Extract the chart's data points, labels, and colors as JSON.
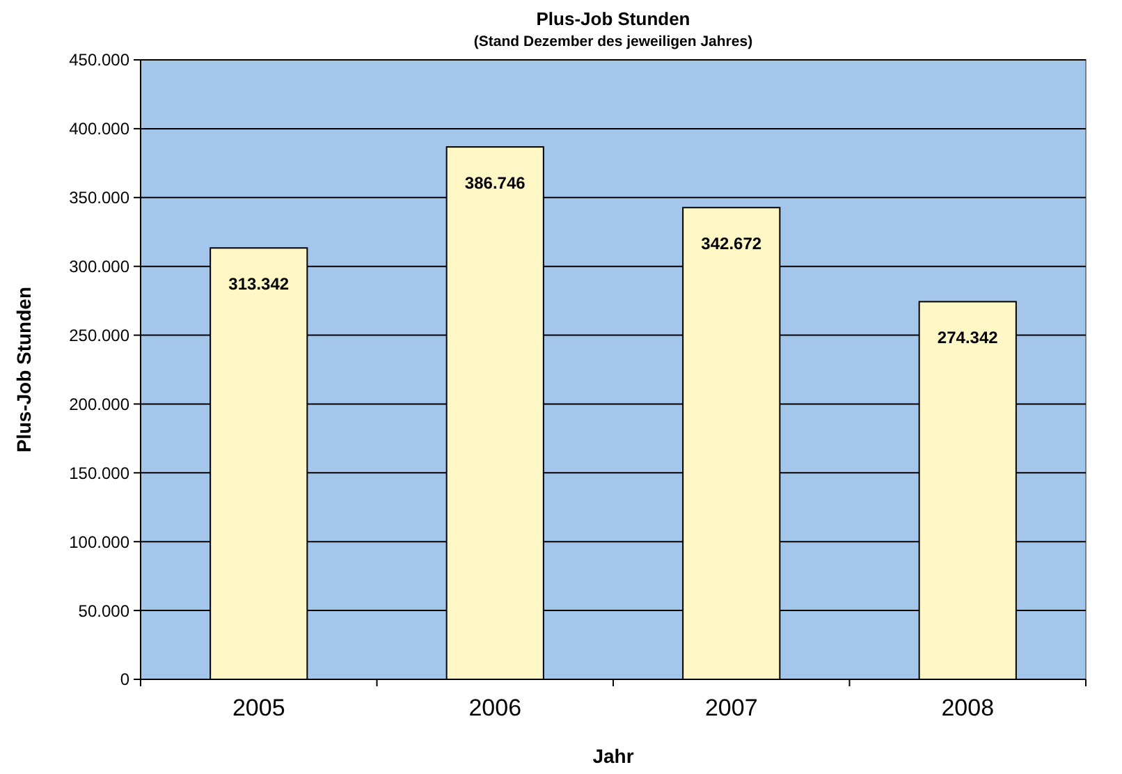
{
  "chart_data": {
    "type": "bar",
    "title": "Plus-Job Stunden",
    "subtitle": "(Stand Dezember des jeweiligen Jahres)",
    "xlabel": "Jahr",
    "ylabel": "Plus-Job Stunden",
    "categories": [
      "2005",
      "2006",
      "2007",
      "2008"
    ],
    "values": [
      313342,
      386746,
      342672,
      274342
    ],
    "value_labels": [
      "313.342",
      "386.746",
      "342.672",
      "274.342"
    ],
    "color": "#fff8c6",
    "ylim": [
      0,
      450000
    ],
    "yticks": [
      {
        "value": 0,
        "label": "0"
      },
      {
        "value": 50000,
        "label": "50.000"
      },
      {
        "value": 100000,
        "label": "100.000"
      },
      {
        "value": 150000,
        "label": "150.000"
      },
      {
        "value": 200000,
        "label": "200.000"
      },
      {
        "value": 250000,
        "label": "250.000"
      },
      {
        "value": 300000,
        "label": "300.000"
      },
      {
        "value": 350000,
        "label": "350.000"
      },
      {
        "value": 400000,
        "label": "400.000"
      },
      {
        "value": 450000,
        "label": "450.000"
      }
    ],
    "grid": "y"
  }
}
